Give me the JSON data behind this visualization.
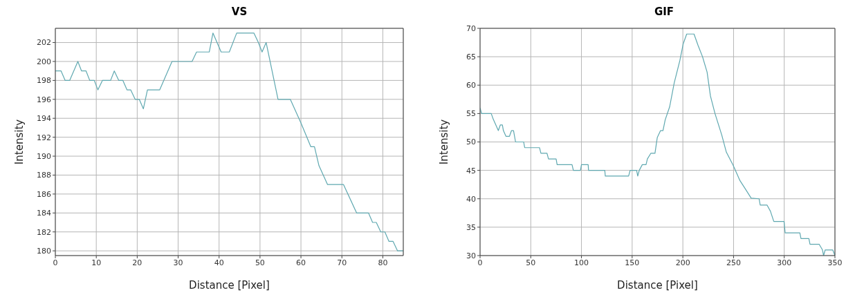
{
  "chart_data": [
    {
      "type": "line",
      "title": "VS",
      "xlabel": "Distance [Pixel]",
      "ylabel": "Intensity",
      "xlim": [
        0,
        85
      ],
      "xticks": [
        0,
        10,
        20,
        30,
        40,
        50,
        60,
        70,
        80
      ],
      "ylim": [
        179.5,
        203.5
      ],
      "yticks": [
        180,
        182,
        184,
        186,
        188,
        190,
        192,
        194,
        196,
        198,
        200,
        202
      ],
      "grid": true,
      "series": [
        {
          "color": "#5fa8b0",
          "x": [
            0,
            1.4,
            2.4,
            3.5,
            5.5,
            6.4,
            7.5,
            8.4,
            9.5,
            10.4,
            11.5,
            13.5,
            14.4,
            15.5,
            16.5,
            17.5,
            18.4,
            19.5,
            20.5,
            21.5,
            22.5,
            25.5,
            28.5,
            33.4,
            34.5,
            37.6,
            38.5,
            40.5,
            42.5,
            44.3,
            48.5,
            49.6,
            50.5,
            51.5,
            54.4,
            57.4,
            60,
            62.4,
            63.3,
            64.4,
            66.5,
            70.4,
            73.6,
            76.5,
            77.5,
            78.4,
            79.5,
            80.5,
            81.5,
            82.5,
            83.6,
            85
          ],
          "values": [
            199,
            199,
            198,
            198,
            200,
            199,
            199,
            198,
            198,
            197,
            198,
            198,
            199,
            198,
            198,
            197,
            197,
            196,
            196,
            195,
            197,
            197,
            200,
            200,
            201,
            201,
            203,
            201,
            201,
            203,
            203,
            202,
            201,
            202,
            196,
            196,
            193.5,
            191,
            191,
            189,
            187,
            187,
            184,
            184,
            183,
            183,
            182,
            182,
            181,
            181,
            180,
            180
          ]
        }
      ]
    },
    {
      "type": "line",
      "title": "GIF",
      "xlabel": "Distance [Pixel]",
      "ylabel": "Intensity",
      "xlim": [
        0,
        350
      ],
      "xticks": [
        0,
        50,
        100,
        150,
        200,
        250,
        300,
        350
      ],
      "ylim": [
        30,
        70
      ],
      "yticks": [
        30,
        35,
        40,
        45,
        50,
        55,
        60,
        65,
        70
      ],
      "grid": true,
      "series": [
        {
          "color": "#5fa8b0",
          "x": [
            0,
            1.5,
            11,
            13,
            15.5,
            18,
            20,
            22,
            23,
            25.5,
            29,
            31,
            33,
            35,
            43,
            44,
            58.6,
            60,
            66,
            67.5,
            75,
            76,
            90.7,
            92,
            99,
            100,
            106.6,
            107,
            123,
            123.5,
            146.5,
            148,
            154.4,
            155.5,
            157,
            160,
            163.7,
            165,
            168.4,
            172.5,
            174.8,
            178,
            180.4,
            182.6,
            187,
            191.5,
            197,
            200.4,
            203.8,
            211,
            215,
            219.4,
            223.9,
            227.2,
            231.7,
            238.4,
            242.9,
            249.6,
            256.3,
            260.7,
            267.4,
            275.2,
            276.3,
            283,
            286.4,
            289.7,
            299.8,
            300.9,
            315.4,
            316.5,
            324.3,
            325.4,
            334.4,
            337.7,
            338.8,
            340.4,
            347.8,
            350
          ],
          "values": [
            56,
            55,
            55,
            54,
            53,
            52,
            53,
            53,
            52,
            51,
            51,
            52,
            52,
            50,
            50,
            49,
            49,
            48,
            48,
            47,
            47,
            46,
            46,
            45,
            45,
            46,
            46,
            45,
            45,
            44,
            44,
            45,
            45,
            44,
            45,
            46,
            46,
            47,
            48,
            48,
            50.8,
            52,
            52,
            53.9,
            56.2,
            60.4,
            64.3,
            67.3,
            69,
            69,
            67,
            65,
            62.3,
            58.1,
            55,
            51.2,
            48.2,
            45.9,
            43.2,
            42,
            40.1,
            40,
            38.9,
            38.9,
            37.8,
            36,
            36,
            34,
            34,
            33,
            33,
            32,
            32,
            31,
            30,
            31,
            31,
            30
          ]
        }
      ]
    }
  ]
}
